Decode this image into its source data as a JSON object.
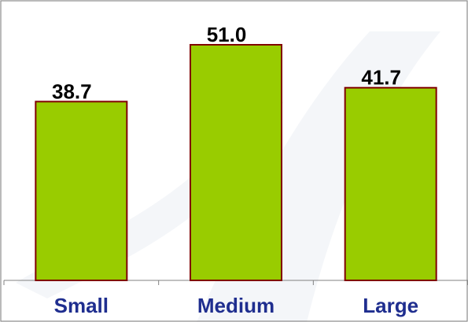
{
  "chart_data": {
    "type": "bar",
    "categories": [
      "Small",
      "Medium",
      "Large"
    ],
    "values": [
      38.7,
      51.0,
      41.7
    ],
    "value_labels": [
      "38.7",
      "51.0",
      "41.7"
    ],
    "title": "",
    "xlabel": "",
    "ylabel": "",
    "ylim": [
      0,
      60
    ],
    "grid": false,
    "legend": "none",
    "colors": {
      "bar_fill": "#99CC00",
      "bar_stroke": "#800000",
      "category_label": "#1F2E8F",
      "value_label": "#000000",
      "axis": "#808080",
      "frame": "#8C8C8C",
      "watermark": "#F4F6F9"
    }
  }
}
